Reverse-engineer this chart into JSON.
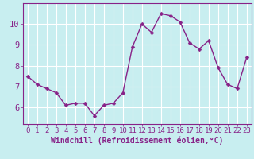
{
  "x": [
    0,
    1,
    2,
    3,
    4,
    5,
    6,
    7,
    8,
    9,
    10,
    11,
    12,
    13,
    14,
    15,
    16,
    17,
    18,
    19,
    20,
    21,
    22,
    23
  ],
  "y": [
    7.5,
    7.1,
    6.9,
    6.7,
    6.1,
    6.2,
    6.2,
    5.6,
    6.1,
    6.2,
    6.7,
    8.9,
    10.0,
    9.6,
    10.5,
    10.4,
    10.1,
    9.1,
    8.8,
    9.2,
    7.9,
    7.1,
    6.9,
    8.4
  ],
  "line_color": "#882288",
  "marker_color": "#882288",
  "bg_color": "#c8eef0",
  "grid_color": "#ffffff",
  "xlabel": "Windchill (Refroidissement éolien,°C)",
  "xlim": [
    -0.5,
    23.5
  ],
  "ylim": [
    5.2,
    11.0
  ],
  "yticks": [
    6,
    7,
    8,
    9,
    10
  ],
  "xticks": [
    0,
    1,
    2,
    3,
    4,
    5,
    6,
    7,
    8,
    9,
    10,
    11,
    12,
    13,
    14,
    15,
    16,
    17,
    18,
    19,
    20,
    21,
    22,
    23
  ],
  "axis_color": "#882288",
  "tick_color": "#882288",
  "font_size": 6.5,
  "xlabel_fontsize": 7.0,
  "marker_size": 2.5,
  "line_width": 1.0
}
